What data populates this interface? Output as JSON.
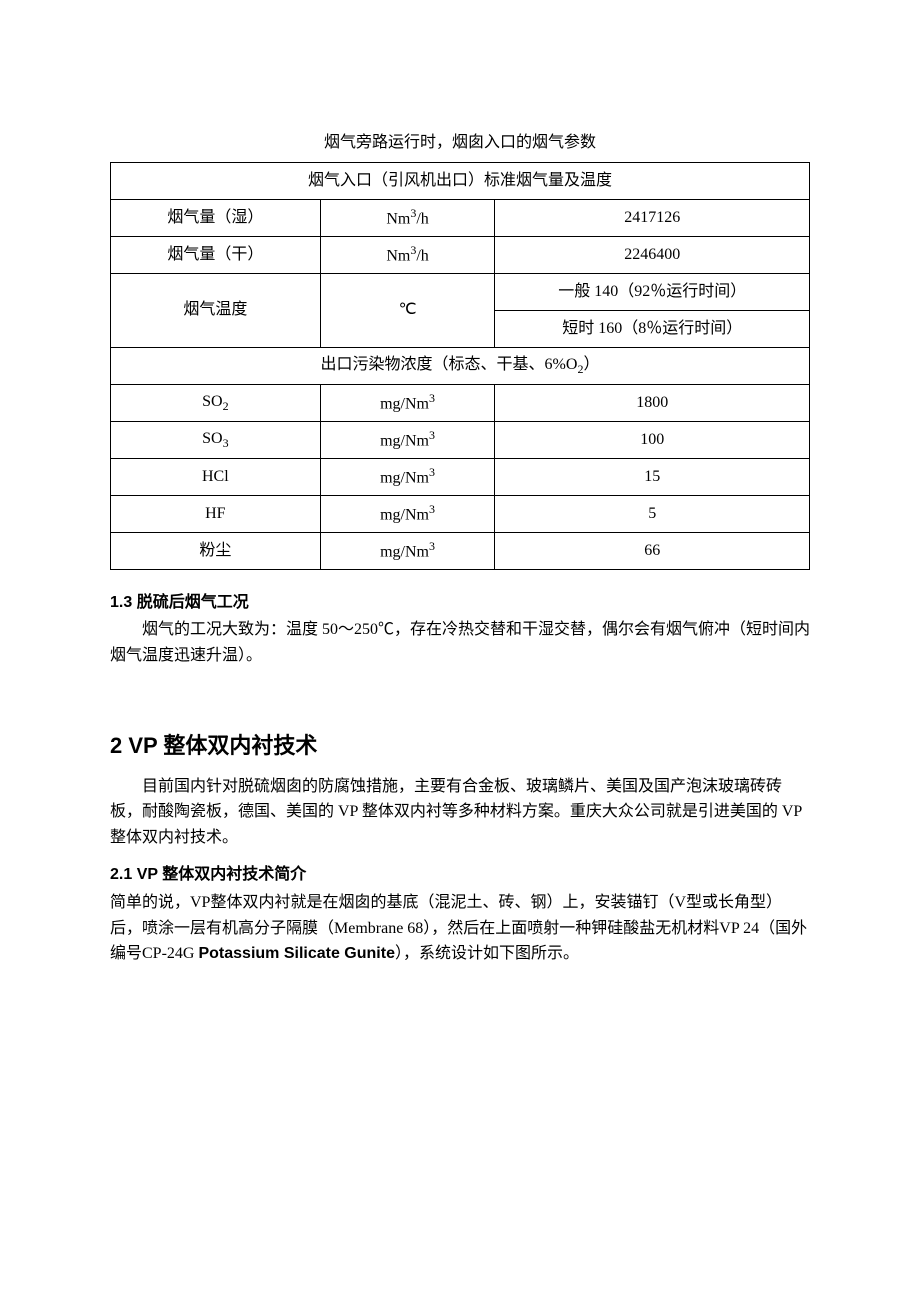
{
  "table": {
    "title": "烟气旁路运行时，烟囱入口的烟气参数",
    "header1": "烟气入口（引风机出口）标准烟气量及温度",
    "rows1": [
      {
        "label": "烟气量（湿）",
        "unit_html": "Nm<sup>3</sup>/h",
        "value": "2417126"
      },
      {
        "label": "烟气量（干）",
        "unit_html": "Nm<sup>3</sup>/h",
        "value": "2246400"
      }
    ],
    "temp_label": "烟气温度",
    "temp_unit": "℃",
    "temp_v1": "一般 140（92％运行时间）",
    "temp_v2": "短时 160（8％运行时间）",
    "header2_html": "出口污染物浓度（标态、干基、6%O<sub>2</sub>）",
    "rows2": [
      {
        "label_html": "SO<sub>2</sub>",
        "unit_html": "mg/Nm<sup>3</sup>",
        "value": "1800"
      },
      {
        "label_html": "SO<sub>3</sub>",
        "unit_html": "mg/Nm<sup>3</sup>",
        "value": "100"
      },
      {
        "label_html": "HCl",
        "unit_html": "mg/Nm<sup>3</sup>",
        "value": "15"
      },
      {
        "label_html": "HF",
        "unit_html": "mg/Nm<sup>3</sup>",
        "value": "5"
      },
      {
        "label_html": "粉尘",
        "unit_html": "mg/Nm<sup>3</sup>",
        "value": "66"
      }
    ],
    "border_color": "#000000",
    "font_size": 16
  },
  "s13": {
    "heading": "1.3 脱硫后烟气工况",
    "para": "烟气的工况大致为：温度 50～250℃，存在冷热交替和干湿交替，偶尔会有烟气俯冲（短时间内烟气温度迅速升温）。"
  },
  "s2": {
    "heading": "2 VP 整体双内衬技术",
    "para": "目前国内针对脱硫烟囱的防腐蚀措施，主要有合金板、玻璃鳞片、美国及国产泡沫玻璃砖砖板，耐酸陶瓷板，德国、美国的 VP 整体双内衬等多种材料方案。重庆大众公司就是引进美国的 VP 整体双内衬技术。"
  },
  "s21": {
    "heading": "2.1 VP 整体双内衬技术简介",
    "para_html": "简单的说，VP整体双内衬就是在烟囱的基底（混泥土、砖、钢）上，安装锚钉（V型或长角型）后，喷涂一层有机高分子隔膜（Membrane 68），然后在上面喷射一种钾硅酸盐无机材料VP 24（国外编号CP-24G <span class=\"bold-latin\">Potassium Silicate Gunite</span>），系统设计如下图所示。"
  },
  "colors": {
    "text": "#000000",
    "background": "#ffffff"
  }
}
